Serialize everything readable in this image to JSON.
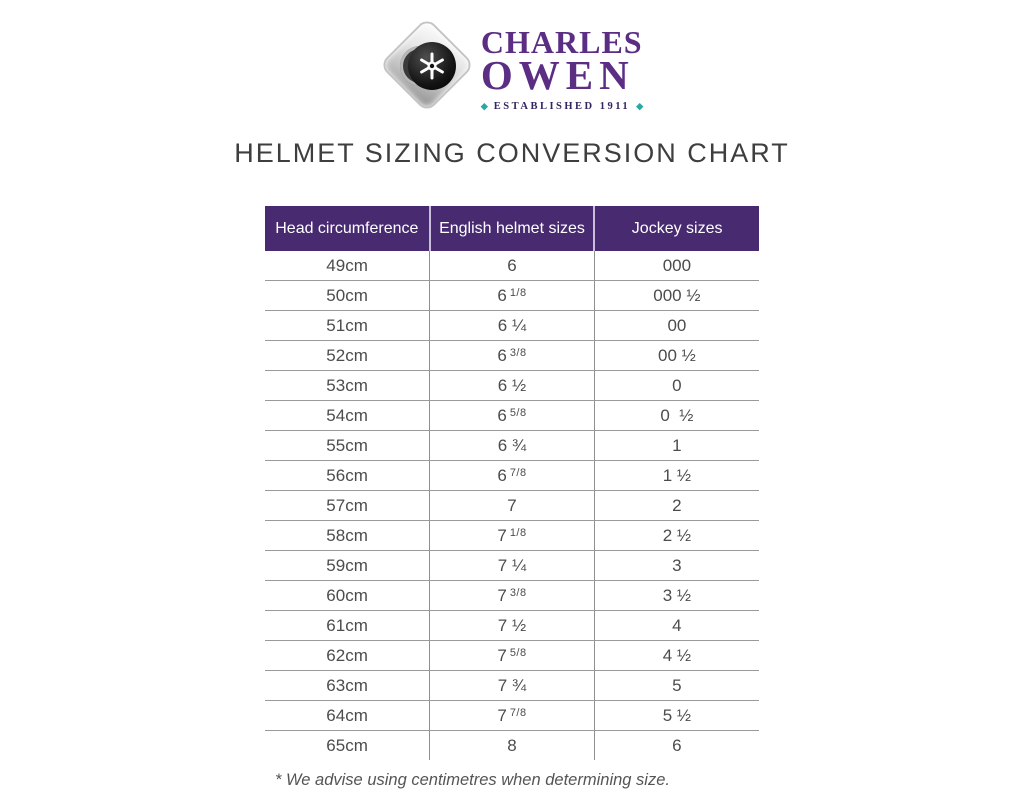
{
  "logo": {
    "brand_line1": "CHARLES",
    "brand_line2": "OWEN",
    "established": "ESTABLISHED 1911",
    "teal_diamond_glyph": "◆",
    "brand_color": "#5b2d83",
    "teal_color": "#29a9a1"
  },
  "title": "HELMET SIZING CONVERSION CHART",
  "chart_data": {
    "type": "table",
    "title": "HELMET SIZING CONVERSION CHART",
    "columns": [
      "Head circumference",
      "English helmet sizes",
      "Jockey sizes"
    ],
    "rows": [
      {
        "head_circumference": "49cm",
        "english_base": "6",
        "english_sup": "",
        "jockey": "000"
      },
      {
        "head_circumference": "50cm",
        "english_base": "6",
        "english_sup": "1/8",
        "jockey": "000 ½"
      },
      {
        "head_circumference": "51cm",
        "english_base": "6 ¼",
        "english_sup": "",
        "jockey": "00"
      },
      {
        "head_circumference": "52cm",
        "english_base": "6",
        "english_sup": "3/8",
        "jockey": "00 ½"
      },
      {
        "head_circumference": "53cm",
        "english_base": "6 ½",
        "english_sup": "",
        "jockey": "0"
      },
      {
        "head_circumference": "54cm",
        "english_base": "6",
        "english_sup": "5/8",
        "jockey": "0  ½"
      },
      {
        "head_circumference": "55cm",
        "english_base": "6 ¾",
        "english_sup": "",
        "jockey": "1"
      },
      {
        "head_circumference": "56cm",
        "english_base": "6",
        "english_sup": "7/8",
        "jockey": "1 ½"
      },
      {
        "head_circumference": "57cm",
        "english_base": "7",
        "english_sup": "",
        "jockey": "2"
      },
      {
        "head_circumference": "58cm",
        "english_base": "7",
        "english_sup": "1/8",
        "jockey": "2 ½"
      },
      {
        "head_circumference": "59cm",
        "english_base": "7 ¼",
        "english_sup": "",
        "jockey": "3"
      },
      {
        "head_circumference": "60cm",
        "english_base": "7",
        "english_sup": "3/8",
        "jockey": "3 ½"
      },
      {
        "head_circumference": "61cm",
        "english_base": "7 ½",
        "english_sup": "",
        "jockey": "4"
      },
      {
        "head_circumference": "62cm",
        "english_base": "7",
        "english_sup": "5/8",
        "jockey": "4 ½"
      },
      {
        "head_circumference": "63cm",
        "english_base": "7 ¾",
        "english_sup": "",
        "jockey": "5"
      },
      {
        "head_circumference": "64cm",
        "english_base": "7",
        "english_sup": "7/8",
        "jockey": "5 ½"
      },
      {
        "head_circumference": "65cm",
        "english_base": "8",
        "english_sup": "",
        "jockey": "6"
      }
    ]
  },
  "footnote": "* We advise using centimetres when determining size.",
  "colors": {
    "header_bg": "#482a70",
    "header_divider": "#c9bedb",
    "row_line": "#9a9a9a",
    "column_line": "#8f8f8f",
    "body_text": "#4c4c4c",
    "title_text": "#3e3e3e"
  }
}
